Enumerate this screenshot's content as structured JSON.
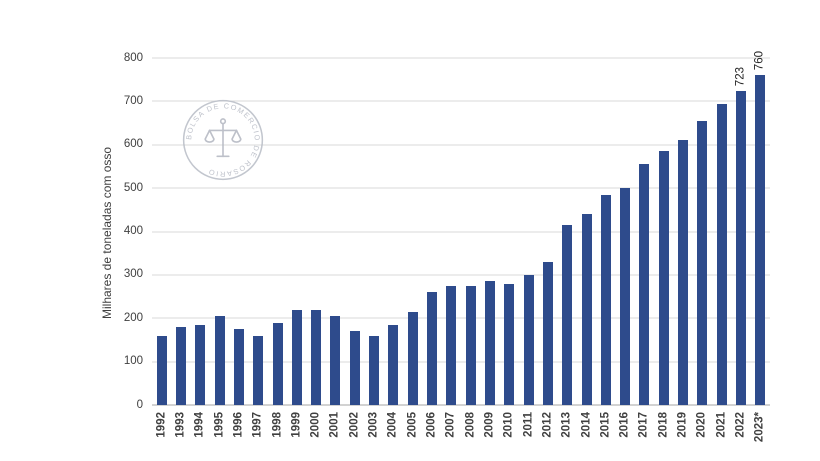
{
  "chart_data": {
    "type": "bar",
    "title": "",
    "xlabel": "",
    "ylabel": "Milhares de toneladas com osso",
    "ylim": [
      0,
      800
    ],
    "yticks": [
      0,
      100,
      200,
      300,
      400,
      500,
      600,
      700,
      800
    ],
    "grid": true,
    "legend": false,
    "bar_color": "#2e4b8c",
    "categories": [
      "1992",
      "1993",
      "1994",
      "1995",
      "1996",
      "1997",
      "1998",
      "1999",
      "2000",
      "2001",
      "2002",
      "2003",
      "2004",
      "2005",
      "2006",
      "2007",
      "2008",
      "2009",
      "2010",
      "2011",
      "2012",
      "2013",
      "2014",
      "2015",
      "2016",
      "2017",
      "2018",
      "2019",
      "2020",
      "2021",
      "2022",
      "2023*"
    ],
    "values": [
      160,
      180,
      185,
      205,
      175,
      160,
      190,
      220,
      220,
      205,
      170,
      160,
      185,
      215,
      260,
      275,
      275,
      285,
      280,
      300,
      330,
      415,
      440,
      485,
      500,
      555,
      585,
      610,
      655,
      695,
      723,
      760
    ],
    "bar_labels": {
      "2022": "723",
      "2023*": "760"
    }
  },
  "watermark": {
    "text": "BOLSA DE COMERCIO DE ROSARIO",
    "color": "#b6bac4"
  }
}
